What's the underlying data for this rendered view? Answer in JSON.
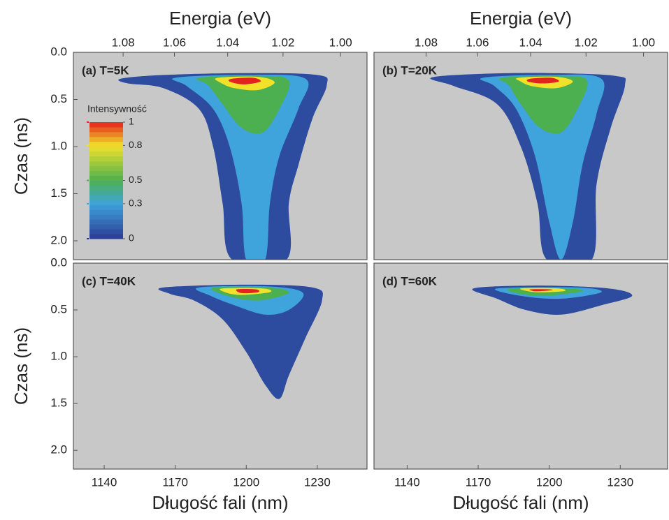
{
  "chart_data": [
    {
      "type": "heatmap",
      "title": "(a) T=5K",
      "x2label": "Energia (eV)",
      "ylabel": "Czas (ns)",
      "xlim": [
        1127,
        1251
      ],
      "ylim": [
        0,
        2.2
      ],
      "x2ticks": [
        1.08,
        1.06,
        1.04,
        1.02,
        {
          "value": 1,
          "label": "1.00"
        }
      ],
      "yticks": [
        {
          "value": 0,
          "label": "0.0"
        },
        0.5,
        {
          "value": 1,
          "label": "1.0"
        },
        1.5,
        {
          "value": 2,
          "label": "2.0"
        }
      ],
      "colorbar": {
        "label": "Intensywność",
        "ticks": [
          0,
          0.3,
          0.5,
          0.8,
          1
        ],
        "colors": [
          "#2b3a93",
          "#3fa3dc",
          "#4cb050",
          "#f2e12a",
          "#e3231f"
        ]
      },
      "contours": [
        {
          "level": 0.05,
          "x": [
            1147,
            1165,
            1200,
            1230,
            1234,
            1228,
            1222,
            1218,
            1217,
            1194,
            1190,
            1186,
            1180,
            1165,
            1150
          ],
          "y": [
            0.28,
            0.24,
            0.22,
            0.24,
            0.35,
            0.7,
            1.2,
            1.6,
            2.2,
            2.2,
            1.6,
            1,
            0.6,
            0.38,
            0.33
          ]
        },
        {
          "level": 0.3,
          "x": [
            1170,
            1200,
            1225,
            1222,
            1214,
            1210,
            1208,
            1200,
            1198,
            1193,
            1186,
            1175
          ],
          "y": [
            0.27,
            0.24,
            0.28,
            0.6,
            1.1,
            1.6,
            2.2,
            2.2,
            1.6,
            1,
            0.6,
            0.36
          ]
        },
        {
          "level": 0.5,
          "x": [
            1180,
            1205,
            1218,
            1214,
            1207,
            1198,
            1190,
            1184
          ],
          "y": [
            0.27,
            0.25,
            0.3,
            0.6,
            0.85,
            0.8,
            0.55,
            0.35
          ]
        },
        {
          "level": 0.8,
          "x": [
            1188,
            1205,
            1212,
            1205,
            1195,
            1189
          ],
          "y": [
            0.27,
            0.26,
            0.32,
            0.4,
            0.38,
            0.32
          ]
        },
        {
          "level": 1,
          "x": [
            1194,
            1203,
            1206,
            1199,
            1193
          ],
          "y": [
            0.28,
            0.27,
            0.31,
            0.34,
            0.31
          ]
        }
      ]
    },
    {
      "type": "heatmap",
      "title": "(b) T=20K",
      "x2label": "Energia (eV)",
      "xlim": [
        1126,
        1250
      ],
      "ylim": [
        0,
        2.2
      ],
      "x2ticks": [
        1.08,
        1.06,
        1.04,
        1.02,
        {
          "value": 1,
          "label": "1.00"
        }
      ],
      "contours": [
        {
          "level": 0.05,
          "x": [
            1150,
            1170,
            1200,
            1228,
            1232,
            1226,
            1220,
            1218,
            1199,
            1195,
            1188,
            1178,
            1160
          ],
          "y": [
            0.27,
            0.23,
            0.22,
            0.25,
            0.35,
            0.8,
            1.4,
            2.2,
            2.2,
            1.6,
            1,
            0.55,
            0.36
          ]
        },
        {
          "level": 0.3,
          "x": [
            1172,
            1200,
            1222,
            1220,
            1214,
            1210,
            1205,
            1200,
            1194,
            1186,
            1177
          ],
          "y": [
            0.27,
            0.24,
            0.28,
            0.65,
            1.2,
            1.8,
            2.2,
            1.8,
            1.1,
            0.6,
            0.36
          ]
        },
        {
          "level": 0.5,
          "x": [
            1180,
            1205,
            1216,
            1212,
            1205,
            1196,
            1188,
            1183
          ],
          "y": [
            0.27,
            0.25,
            0.3,
            0.6,
            0.85,
            0.8,
            0.55,
            0.35
          ]
        },
        {
          "level": 0.8,
          "x": [
            1187,
            1203,
            1210,
            1203,
            1193,
            1188
          ],
          "y": [
            0.27,
            0.26,
            0.31,
            0.38,
            0.36,
            0.31
          ]
        },
        {
          "level": 1,
          "x": [
            1192,
            1201,
            1204,
            1197,
            1191
          ],
          "y": [
            0.28,
            0.27,
            0.31,
            0.33,
            0.31
          ]
        }
      ]
    },
    {
      "type": "heatmap",
      "title": "(c) T=40K",
      "ylabel": "Czas (ns)",
      "xlabel": "Długość fali (nm)",
      "xlim": [
        1127,
        1251
      ],
      "ylim": [
        0,
        2.2
      ],
      "xticks": [
        1140,
        1170,
        1200,
        1230
      ],
      "yticks": [
        {
          "value": 0,
          "label": "0.0"
        },
        0.5,
        {
          "value": 1,
          "label": "1.0"
        },
        1.5,
        {
          "value": 2,
          "label": "2.0"
        }
      ],
      "contours": [
        {
          "level": 0.05,
          "x": [
            1165,
            1200,
            1228,
            1232,
            1225,
            1218,
            1214,
            1208,
            1200,
            1190,
            1178,
            1168
          ],
          "y": [
            0.26,
            0.23,
            0.26,
            0.4,
            0.8,
            1.2,
            1.45,
            1.3,
            0.95,
            0.6,
            0.4,
            0.33
          ]
        },
        {
          "level": 0.3,
          "x": [
            1180,
            1210,
            1224,
            1218,
            1208,
            1195,
            1185
          ],
          "y": [
            0.26,
            0.25,
            0.32,
            0.5,
            0.55,
            0.45,
            0.35
          ]
        },
        {
          "level": 0.5,
          "x": [
            1186,
            1210,
            1218,
            1205,
            1192
          ],
          "y": [
            0.26,
            0.26,
            0.32,
            0.4,
            0.35
          ]
        },
        {
          "level": 0.8,
          "x": [
            1190,
            1207,
            1210,
            1198,
            1191
          ],
          "y": [
            0.27,
            0.27,
            0.31,
            0.34,
            0.31
          ]
        },
        {
          "level": 1,
          "x": [
            1196,
            1204,
            1205,
            1198
          ],
          "y": [
            0.28,
            0.28,
            0.31,
            0.32
          ]
        }
      ]
    },
    {
      "type": "heatmap",
      "title": "(d) T=60K",
      "xlabel": "Długość fali (nm)",
      "xlim": [
        1126,
        1250
      ],
      "ylim": [
        0,
        2.2
      ],
      "xticks": [
        1140,
        1170,
        1200,
        1230
      ],
      "contours": [
        {
          "level": 0.05,
          "x": [
            1168,
            1195,
            1225,
            1235,
            1222,
            1205,
            1190,
            1178
          ],
          "y": [
            0.27,
            0.24,
            0.27,
            0.35,
            0.45,
            0.55,
            0.5,
            0.38
          ]
        },
        {
          "level": 0.3,
          "x": [
            1178,
            1212,
            1222,
            1205,
            1188
          ],
          "y": [
            0.27,
            0.26,
            0.31,
            0.38,
            0.35
          ]
        },
        {
          "level": 0.5,
          "x": [
            1184,
            1208,
            1214,
            1198,
            1186
          ],
          "y": [
            0.27,
            0.27,
            0.3,
            0.35,
            0.32
          ]
        },
        {
          "level": 0.8,
          "x": [
            1188,
            1204,
            1206,
            1194
          ],
          "y": [
            0.27,
            0.27,
            0.3,
            0.31
          ]
        },
        {
          "level": 1,
          "x": [
            1192,
            1200,
            1201,
            1194
          ],
          "y": [
            0.28,
            0.28,
            0.29,
            0.3
          ]
        }
      ]
    }
  ]
}
